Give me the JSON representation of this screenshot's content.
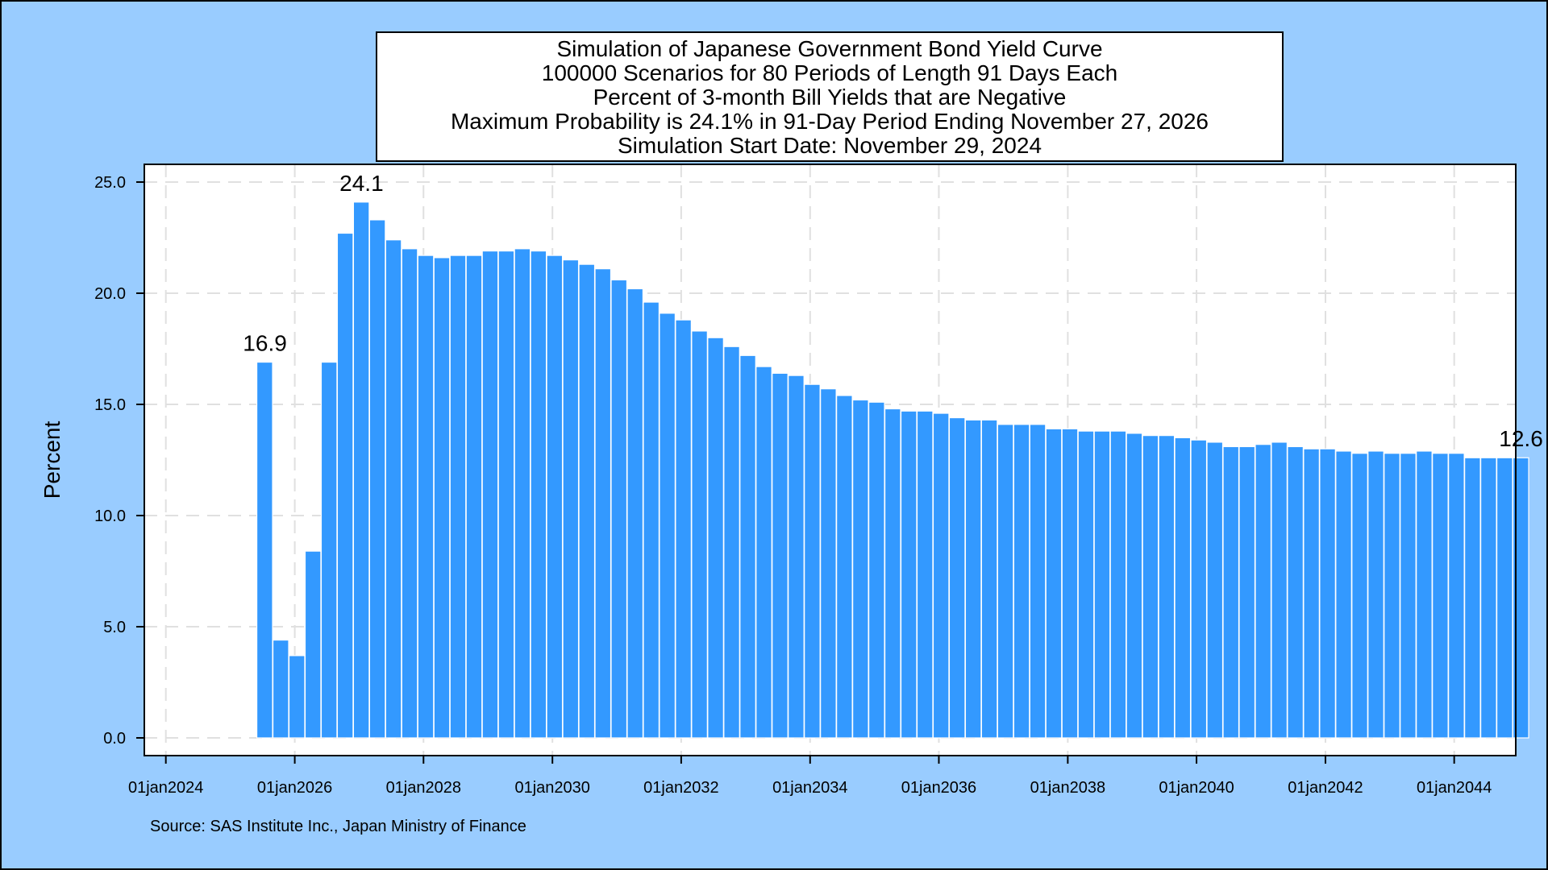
{
  "chart_data": {
    "type": "bar",
    "title_lines": [
      "Simulation of Japanese Government Bond Yield Curve",
      "100000 Scenarios for 80 Periods of Length 91 Days Each",
      "Percent of 3-month Bill Yields that are Negative",
      "Maximum Probability is 24.1% in 91-Day Period Ending November 27, 2026",
      "Simulation Start Date: November 29, 2024"
    ],
    "ylabel": "Percent",
    "xlabel": "",
    "ylim": [
      0,
      25
    ],
    "yticks": [
      0,
      5,
      10,
      15,
      20,
      25
    ],
    "ytick_labels": [
      "0.0",
      "5.0",
      "10.0",
      "15.0",
      "20.0",
      "25.0"
    ],
    "xlim": [
      "2023-09-01",
      "2044-12-15"
    ],
    "xticks": [
      "2024-01-01",
      "2026-01-01",
      "2028-01-01",
      "2030-01-01",
      "2032-01-01",
      "2034-01-01",
      "2036-01-01",
      "2038-01-01",
      "2040-01-01",
      "2042-01-01",
      "2044-01-01"
    ],
    "xtick_labels": [
      "01jan2024",
      "01jan2026",
      "01jan2028",
      "01jan2030",
      "01jan2032",
      "01jan2034",
      "01jan2036",
      "01jan2038",
      "01jan2040",
      "01jan2042",
      "01jan2044"
    ],
    "grid": true,
    "bar_color": "#3399ff",
    "background_color": "#ffffff",
    "page_color": "#99ccff",
    "x_start": "2025-05-31",
    "period_days": 91.31,
    "values": [
      16.9,
      4.4,
      3.7,
      8.4,
      16.9,
      22.7,
      24.1,
      23.3,
      22.4,
      22.0,
      21.7,
      21.6,
      21.7,
      21.7,
      21.9,
      21.9,
      22.0,
      21.9,
      21.7,
      21.5,
      21.3,
      21.1,
      20.6,
      20.2,
      19.6,
      19.1,
      18.8,
      18.3,
      18.0,
      17.6,
      17.2,
      16.7,
      16.4,
      16.3,
      15.9,
      15.7,
      15.4,
      15.2,
      15.1,
      14.8,
      14.7,
      14.7,
      14.6,
      14.4,
      14.3,
      14.3,
      14.1,
      14.1,
      14.1,
      13.9,
      13.9,
      13.8,
      13.8,
      13.8,
      13.7,
      13.6,
      13.6,
      13.5,
      13.4,
      13.3,
      13.1,
      13.1,
      13.2,
      13.3,
      13.1,
      13.0,
      13.0,
      12.9,
      12.8,
      12.9,
      12.8,
      12.8,
      12.9,
      12.8,
      12.8,
      12.6,
      12.6,
      12.6,
      12.6
    ],
    "annotations": [
      {
        "index": 0,
        "text": "16.9"
      },
      {
        "index": 6,
        "text": "24.1"
      },
      {
        "index": 78,
        "text": "12.6"
      }
    ],
    "source": "Source: SAS Institute Inc., Japan Ministry of Finance"
  }
}
